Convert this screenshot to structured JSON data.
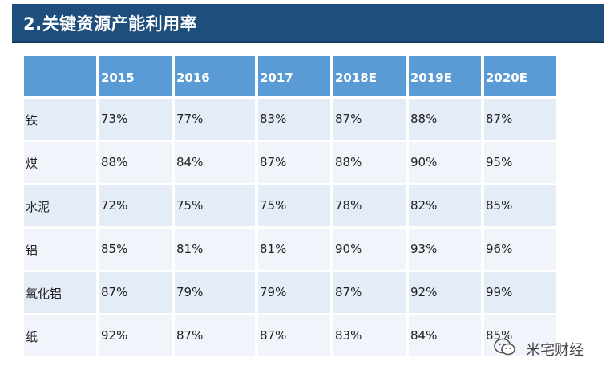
{
  "title": "2.关键资源产能利用率",
  "table": {
    "headers": [
      "",
      "2015",
      "2016",
      "2017",
      "2018E",
      "2019E",
      "2020E"
    ],
    "rows": [
      {
        "label": "铁",
        "values": [
          "73%",
          "77%",
          "83%",
          "87%",
          "88%",
          "87%"
        ]
      },
      {
        "label": "煤",
        "values": [
          "88%",
          "84%",
          "87%",
          "88%",
          "90%",
          "95%"
        ]
      },
      {
        "label": "水泥",
        "values": [
          "72%",
          "75%",
          "75%",
          "78%",
          "82%",
          "85%"
        ]
      },
      {
        "label": "铝",
        "values": [
          "85%",
          "81%",
          "81%",
          "90%",
          "93%",
          "96%"
        ]
      },
      {
        "label": "氧化铝",
        "values": [
          "87%",
          "79%",
          "79%",
          "87%",
          "92%",
          "99%"
        ]
      },
      {
        "label": "纸",
        "values": [
          "92%",
          "87%",
          "87%",
          "83%",
          "84%",
          "85%"
        ]
      }
    ]
  },
  "watermark": {
    "text": "米宅财经",
    "icon": "wechat-icon"
  },
  "colors": {
    "title_bg": "#1e4f7c",
    "header_bg": "#5b9bd5",
    "row_bg_a": "#e4ecf7",
    "row_bg_b": "#f1f5fb"
  }
}
